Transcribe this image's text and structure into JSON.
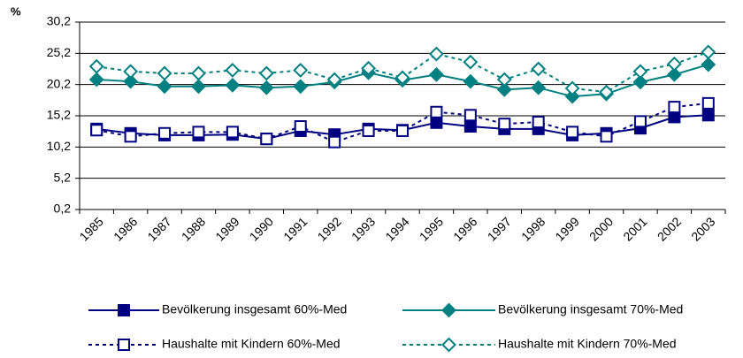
{
  "chart_data": {
    "type": "line",
    "y_label": "%",
    "categories": [
      "1985",
      "1986",
      "1987",
      "1988",
      "1989",
      "1990",
      "1991",
      "1992",
      "1993",
      "1994",
      "1995",
      "1996",
      "1997",
      "1998",
      "1999",
      "2000",
      "2001",
      "2002",
      "2003"
    ],
    "ylim": [
      0.2,
      30.2
    ],
    "yticks": [
      {
        "value": 0.2,
        "label": "0,2"
      },
      {
        "value": 5.2,
        "label": "5,2"
      },
      {
        "value": 10.2,
        "label": "10,2"
      },
      {
        "value": 15.2,
        "label": "15,2"
      },
      {
        "value": 20.2,
        "label": "20,2"
      },
      {
        "value": 25.2,
        "label": "25,2"
      },
      {
        "value": 30.2,
        "label": "30,2"
      }
    ],
    "grid": true,
    "series": [
      {
        "name": "Bevölkerung insgesamt 60%-Med",
        "color": "#000080",
        "marker": "square",
        "filled": true,
        "dashed": false,
        "values": [
          13.1,
          12.4,
          12.1,
          12.1,
          12.2,
          11.5,
          12.8,
          12.2,
          13.1,
          12.9,
          14.1,
          13.5,
          13.1,
          13.1,
          12.1,
          12.4,
          13.2,
          15.0,
          15.3
        ]
      },
      {
        "name": "Bevölkerung insgesamt 70%-Med",
        "color": "#008080",
        "marker": "diamond",
        "filled": true,
        "dashed": false,
        "values": [
          21.0,
          20.7,
          19.9,
          19.9,
          20.1,
          19.7,
          19.9,
          20.6,
          22.1,
          20.9,
          21.8,
          20.7,
          19.4,
          19.7,
          18.3,
          18.7,
          20.6,
          21.8,
          23.4
        ]
      },
      {
        "name": "Haushalte mit Kindern 60%-Med",
        "color": "#000080",
        "marker": "square",
        "filled": false,
        "dashed": true,
        "values": [
          12.9,
          11.9,
          12.4,
          12.6,
          12.6,
          11.5,
          13.5,
          11.0,
          12.8,
          12.8,
          15.8,
          15.3,
          13.9,
          14.2,
          12.6,
          11.9,
          14.3,
          16.6,
          17.2
        ]
      },
      {
        "name": "Haushalte mit Kindern 70%-Med",
        "color": "#008080",
        "marker": "diamond",
        "filled": false,
        "dashed": true,
        "values": [
          23.1,
          22.3,
          22.0,
          22.0,
          22.5,
          22.0,
          22.5,
          21.0,
          22.8,
          21.3,
          25.1,
          23.8,
          21.0,
          22.7,
          19.6,
          19.0,
          22.3,
          23.5,
          25.4
        ]
      }
    ]
  }
}
